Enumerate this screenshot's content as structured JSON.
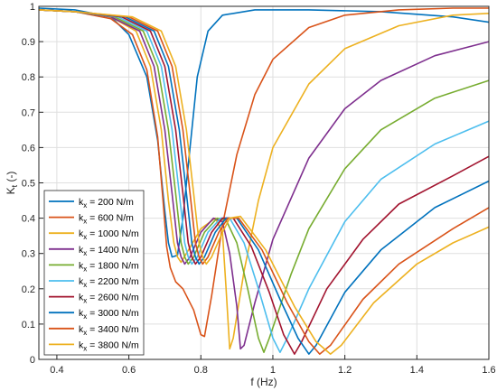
{
  "chart_data": {
    "type": "line",
    "xlabel": "f (Hz)",
    "ylabel_main": "K",
    "ylabel_sub": "t",
    "ylabel_unit": "(-)",
    "xlim": [
      0.35,
      1.6
    ],
    "ylim": [
      0,
      1
    ],
    "xticks": [
      0.4,
      0.6,
      0.8,
      1.0,
      1.2,
      1.4,
      1.6
    ],
    "xtick_labels": [
      "0.4",
      "0.6",
      "0.8",
      "1",
      "1.2",
      "1.4",
      "1.6"
    ],
    "yticks": [
      0,
      0.1,
      0.2,
      0.3,
      0.4,
      0.5,
      0.6,
      0.7,
      0.8,
      0.9,
      1
    ],
    "ytick_labels": [
      "0",
      "0.1",
      "0.2",
      "0.3",
      "0.4",
      "0.5",
      "0.6",
      "0.7",
      "0.8",
      "0.9",
      "1"
    ],
    "grid": true,
    "legend_position": "bottom-left",
    "legend_prefix": "k",
    "legend_sub": "x",
    "series": [
      {
        "name": "= 200 N/m",
        "color": "#0072BD",
        "points": [
          [
            0.35,
            0.995
          ],
          [
            0.45,
            0.99
          ],
          [
            0.55,
            0.97
          ],
          [
            0.6,
            0.92
          ],
          [
            0.65,
            0.8
          ],
          [
            0.68,
            0.62
          ],
          [
            0.7,
            0.42
          ],
          [
            0.71,
            0.33
          ],
          [
            0.72,
            0.29
          ],
          [
            0.735,
            0.295
          ],
          [
            0.75,
            0.4
          ],
          [
            0.77,
            0.6
          ],
          [
            0.79,
            0.8
          ],
          [
            0.82,
            0.93
          ],
          [
            0.86,
            0.975
          ],
          [
            0.95,
            0.99
          ],
          [
            1.1,
            0.99
          ],
          [
            1.3,
            0.985
          ],
          [
            1.5,
            0.97
          ],
          [
            1.6,
            0.955
          ]
        ]
      },
      {
        "name": "= 600 N/m",
        "color": "#D95319",
        "points": [
          [
            0.35,
            0.99
          ],
          [
            0.45,
            0.985
          ],
          [
            0.55,
            0.965
          ],
          [
            0.61,
            0.92
          ],
          [
            0.65,
            0.82
          ],
          [
            0.68,
            0.63
          ],
          [
            0.695,
            0.45
          ],
          [
            0.705,
            0.32
          ],
          [
            0.715,
            0.26
          ],
          [
            0.73,
            0.22
          ],
          [
            0.75,
            0.2
          ],
          [
            0.78,
            0.14
          ],
          [
            0.8,
            0.07
          ],
          [
            0.81,
            0.065
          ],
          [
            0.83,
            0.18
          ],
          [
            0.86,
            0.38
          ],
          [
            0.9,
            0.58
          ],
          [
            0.95,
            0.75
          ],
          [
            1.0,
            0.85
          ],
          [
            1.1,
            0.94
          ],
          [
            1.2,
            0.975
          ],
          [
            1.35,
            0.99
          ],
          [
            1.5,
            0.995
          ],
          [
            1.6,
            0.995
          ]
        ]
      },
      {
        "name": "= 1000 N/m",
        "color": "#EDB120",
        "points": [
          [
            0.35,
            0.99
          ],
          [
            0.45,
            0.985
          ],
          [
            0.55,
            0.97
          ],
          [
            0.62,
            0.93
          ],
          [
            0.66,
            0.83
          ],
          [
            0.69,
            0.65
          ],
          [
            0.71,
            0.45
          ],
          [
            0.725,
            0.33
          ],
          [
            0.735,
            0.29
          ],
          [
            0.745,
            0.275
          ],
          [
            0.76,
            0.3
          ],
          [
            0.8,
            0.37
          ],
          [
            0.84,
            0.4
          ],
          [
            0.86,
            0.36
          ],
          [
            0.87,
            0.2
          ],
          [
            0.88,
            0.03
          ],
          [
            0.89,
            0.06
          ],
          [
            0.92,
            0.25
          ],
          [
            0.96,
            0.45
          ],
          [
            1.0,
            0.6
          ],
          [
            1.1,
            0.78
          ],
          [
            1.2,
            0.88
          ],
          [
            1.35,
            0.945
          ],
          [
            1.5,
            0.975
          ],
          [
            1.6,
            0.98
          ]
        ]
      },
      {
        "name": "= 1400 N/m",
        "color": "#7E2F8E",
        "points": [
          [
            0.35,
            0.99
          ],
          [
            0.45,
            0.985
          ],
          [
            0.55,
            0.97
          ],
          [
            0.63,
            0.93
          ],
          [
            0.67,
            0.83
          ],
          [
            0.7,
            0.65
          ],
          [
            0.72,
            0.47
          ],
          [
            0.735,
            0.33
          ],
          [
            0.745,
            0.29
          ],
          [
            0.755,
            0.27
          ],
          [
            0.77,
            0.29
          ],
          [
            0.8,
            0.36
          ],
          [
            0.835,
            0.4
          ],
          [
            0.86,
            0.39
          ],
          [
            0.88,
            0.3
          ],
          [
            0.9,
            0.15
          ],
          [
            0.91,
            0.03
          ],
          [
            0.92,
            0.04
          ],
          [
            0.95,
            0.16
          ],
          [
            1.0,
            0.34
          ],
          [
            1.1,
            0.57
          ],
          [
            1.2,
            0.71
          ],
          [
            1.3,
            0.79
          ],
          [
            1.45,
            0.86
          ],
          [
            1.6,
            0.9
          ]
        ]
      },
      {
        "name": "= 1800 N/m",
        "color": "#77AC30",
        "points": [
          [
            0.35,
            0.99
          ],
          [
            0.45,
            0.985
          ],
          [
            0.56,
            0.97
          ],
          [
            0.64,
            0.93
          ],
          [
            0.68,
            0.83
          ],
          [
            0.71,
            0.65
          ],
          [
            0.73,
            0.47
          ],
          [
            0.745,
            0.33
          ],
          [
            0.755,
            0.29
          ],
          [
            0.765,
            0.27
          ],
          [
            0.78,
            0.29
          ],
          [
            0.81,
            0.36
          ],
          [
            0.845,
            0.4
          ],
          [
            0.87,
            0.395
          ],
          [
            0.9,
            0.33
          ],
          [
            0.93,
            0.2
          ],
          [
            0.96,
            0.06
          ],
          [
            0.975,
            0.02
          ],
          [
            0.99,
            0.06
          ],
          [
            1.05,
            0.24
          ],
          [
            1.1,
            0.37
          ],
          [
            1.2,
            0.54
          ],
          [
            1.3,
            0.65
          ],
          [
            1.45,
            0.74
          ],
          [
            1.6,
            0.79
          ]
        ]
      },
      {
        "name": "= 2200 N/m",
        "color": "#4DBEEE",
        "points": [
          [
            0.35,
            0.99
          ],
          [
            0.45,
            0.985
          ],
          [
            0.57,
            0.97
          ],
          [
            0.65,
            0.93
          ],
          [
            0.69,
            0.83
          ],
          [
            0.72,
            0.65
          ],
          [
            0.74,
            0.47
          ],
          [
            0.755,
            0.33
          ],
          [
            0.765,
            0.29
          ],
          [
            0.775,
            0.27
          ],
          [
            0.79,
            0.29
          ],
          [
            0.82,
            0.36
          ],
          [
            0.855,
            0.4
          ],
          [
            0.88,
            0.4
          ],
          [
            0.92,
            0.33
          ],
          [
            0.96,
            0.2
          ],
          [
            1.0,
            0.06
          ],
          [
            1.02,
            0.02
          ],
          [
            1.04,
            0.06
          ],
          [
            1.1,
            0.2
          ],
          [
            1.2,
            0.39
          ],
          [
            1.3,
            0.51
          ],
          [
            1.45,
            0.61
          ],
          [
            1.6,
            0.675
          ]
        ]
      },
      {
        "name": "= 2600 N/m",
        "color": "#A2142F",
        "points": [
          [
            0.35,
            0.99
          ],
          [
            0.45,
            0.985
          ],
          [
            0.58,
            0.97
          ],
          [
            0.66,
            0.93
          ],
          [
            0.7,
            0.83
          ],
          [
            0.73,
            0.65
          ],
          [
            0.75,
            0.47
          ],
          [
            0.765,
            0.33
          ],
          [
            0.775,
            0.29
          ],
          [
            0.785,
            0.27
          ],
          [
            0.8,
            0.29
          ],
          [
            0.83,
            0.36
          ],
          [
            0.86,
            0.4
          ],
          [
            0.89,
            0.4
          ],
          [
            0.94,
            0.32
          ],
          [
            0.99,
            0.19
          ],
          [
            1.03,
            0.07
          ],
          [
            1.06,
            0.015
          ],
          [
            1.08,
            0.05
          ],
          [
            1.15,
            0.2
          ],
          [
            1.25,
            0.34
          ],
          [
            1.35,
            0.44
          ],
          [
            1.5,
            0.52
          ],
          [
            1.6,
            0.575
          ]
        ]
      },
      {
        "name": "= 3000 N/m",
        "color": "#0072BD",
        "points": [
          [
            0.35,
            0.99
          ],
          [
            0.45,
            0.985
          ],
          [
            0.59,
            0.97
          ],
          [
            0.67,
            0.93
          ],
          [
            0.71,
            0.83
          ],
          [
            0.74,
            0.65
          ],
          [
            0.76,
            0.47
          ],
          [
            0.775,
            0.33
          ],
          [
            0.785,
            0.29
          ],
          [
            0.795,
            0.27
          ],
          [
            0.81,
            0.29
          ],
          [
            0.84,
            0.36
          ],
          [
            0.87,
            0.4
          ],
          [
            0.9,
            0.4
          ],
          [
            0.96,
            0.31
          ],
          [
            1.02,
            0.17
          ],
          [
            1.07,
            0.06
          ],
          [
            1.1,
            0.015
          ],
          [
            1.12,
            0.04
          ],
          [
            1.2,
            0.19
          ],
          [
            1.3,
            0.31
          ],
          [
            1.45,
            0.43
          ],
          [
            1.6,
            0.505
          ]
        ]
      },
      {
        "name": "= 3400 N/m",
        "color": "#D95319",
        "points": [
          [
            0.35,
            0.99
          ],
          [
            0.45,
            0.985
          ],
          [
            0.6,
            0.97
          ],
          [
            0.68,
            0.93
          ],
          [
            0.72,
            0.83
          ],
          [
            0.75,
            0.65
          ],
          [
            0.77,
            0.47
          ],
          [
            0.785,
            0.33
          ],
          [
            0.795,
            0.29
          ],
          [
            0.805,
            0.27
          ],
          [
            0.82,
            0.29
          ],
          [
            0.85,
            0.36
          ],
          [
            0.875,
            0.4
          ],
          [
            0.905,
            0.4
          ],
          [
            0.97,
            0.31
          ],
          [
            1.04,
            0.16
          ],
          [
            1.1,
            0.05
          ],
          [
            1.13,
            0.015
          ],
          [
            1.16,
            0.04
          ],
          [
            1.25,
            0.17
          ],
          [
            1.35,
            0.27
          ],
          [
            1.5,
            0.37
          ],
          [
            1.6,
            0.43
          ]
        ]
      },
      {
        "name": "= 3800 N/m",
        "color": "#EDB120",
        "points": [
          [
            0.35,
            0.99
          ],
          [
            0.45,
            0.985
          ],
          [
            0.61,
            0.97
          ],
          [
            0.69,
            0.93
          ],
          [
            0.73,
            0.83
          ],
          [
            0.76,
            0.65
          ],
          [
            0.78,
            0.47
          ],
          [
            0.795,
            0.33
          ],
          [
            0.805,
            0.29
          ],
          [
            0.815,
            0.27
          ],
          [
            0.83,
            0.29
          ],
          [
            0.86,
            0.36
          ],
          [
            0.88,
            0.4
          ],
          [
            0.91,
            0.405
          ],
          [
            0.98,
            0.31
          ],
          [
            1.06,
            0.15
          ],
          [
            1.12,
            0.05
          ],
          [
            1.16,
            0.015
          ],
          [
            1.19,
            0.04
          ],
          [
            1.28,
            0.16
          ],
          [
            1.4,
            0.27
          ],
          [
            1.5,
            0.33
          ],
          [
            1.6,
            0.375
          ]
        ]
      }
    ]
  }
}
